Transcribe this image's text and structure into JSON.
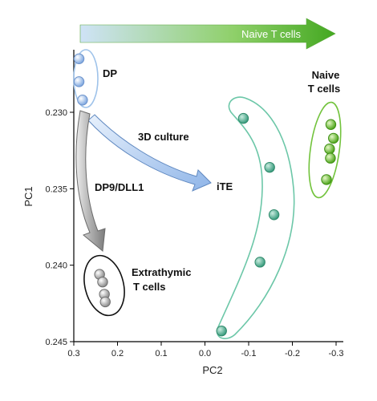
{
  "chart_data": {
    "type": "scatter",
    "title": "",
    "xlabel": "PC2",
    "ylabel": "PC1",
    "x_reversed": true,
    "xlim": [
      0.3,
      -0.33
    ],
    "ylim": [
      0.2255,
      0.245
    ],
    "x_ticks": [
      0.3,
      0.2,
      0.1,
      0.0,
      -0.1,
      -0.2,
      -0.3
    ],
    "x_tick_labels": [
      "0.3",
      "0.2",
      "0.1",
      "0.0",
      "-0.1",
      "-0.2",
      "-0.3"
    ],
    "y_ticks": [
      0.23,
      0.235,
      0.24,
      0.245
    ],
    "y_tick_labels": [
      "0.230",
      "0.235",
      "0.240",
      "0.245"
    ],
    "grid": false,
    "banner": {
      "label": "Naive T cells",
      "colors": {
        "start": "#cfe3f7",
        "mid": "#8fd06a",
        "end": "#44a821"
      }
    },
    "series": [
      {
        "label": "DP",
        "color": "#a8c8f0",
        "points": [
          [
            0.288,
            0.2265
          ],
          [
            0.288,
            0.228
          ],
          [
            0.28,
            0.2292
          ]
        ]
      },
      {
        "label": "iTE",
        "color": "#5fb89a",
        "points": [
          [
            -0.088,
            0.2304
          ],
          [
            -0.148,
            0.2336
          ],
          [
            -0.158,
            0.2367
          ],
          [
            -0.126,
            0.2398
          ],
          [
            -0.038,
            0.2443
          ]
        ]
      },
      {
        "label": "Naive T cells",
        "color": "#7ccc3a",
        "points": [
          [
            -0.288,
            0.2308
          ],
          [
            -0.294,
            0.2317
          ],
          [
            -0.285,
            0.2324
          ],
          [
            -0.287,
            0.233
          ],
          [
            -0.278,
            0.2344
          ]
        ]
      },
      {
        "label": "Extrathymic T cells",
        "color": "#b8b8b8",
        "points": [
          [
            0.241,
            0.2406
          ],
          [
            0.234,
            0.2411
          ],
          [
            0.23,
            0.2419
          ],
          [
            0.228,
            0.2424
          ]
        ]
      }
    ],
    "group_labels": {
      "dp": "DP",
      "naive": [
        "Naive",
        "T cells"
      ],
      "ite": "iTE",
      "extrathymic": [
        "Extrathymic",
        "T cells"
      ]
    },
    "arrows": [
      {
        "label": "3D culture",
        "from": "DP",
        "to": "iTE",
        "color": "#a9c6ee"
      },
      {
        "label": "DP9/DLL1",
        "from": "DP",
        "to": "Extrathymic T cells",
        "color": "#a8a8a8"
      }
    ]
  }
}
